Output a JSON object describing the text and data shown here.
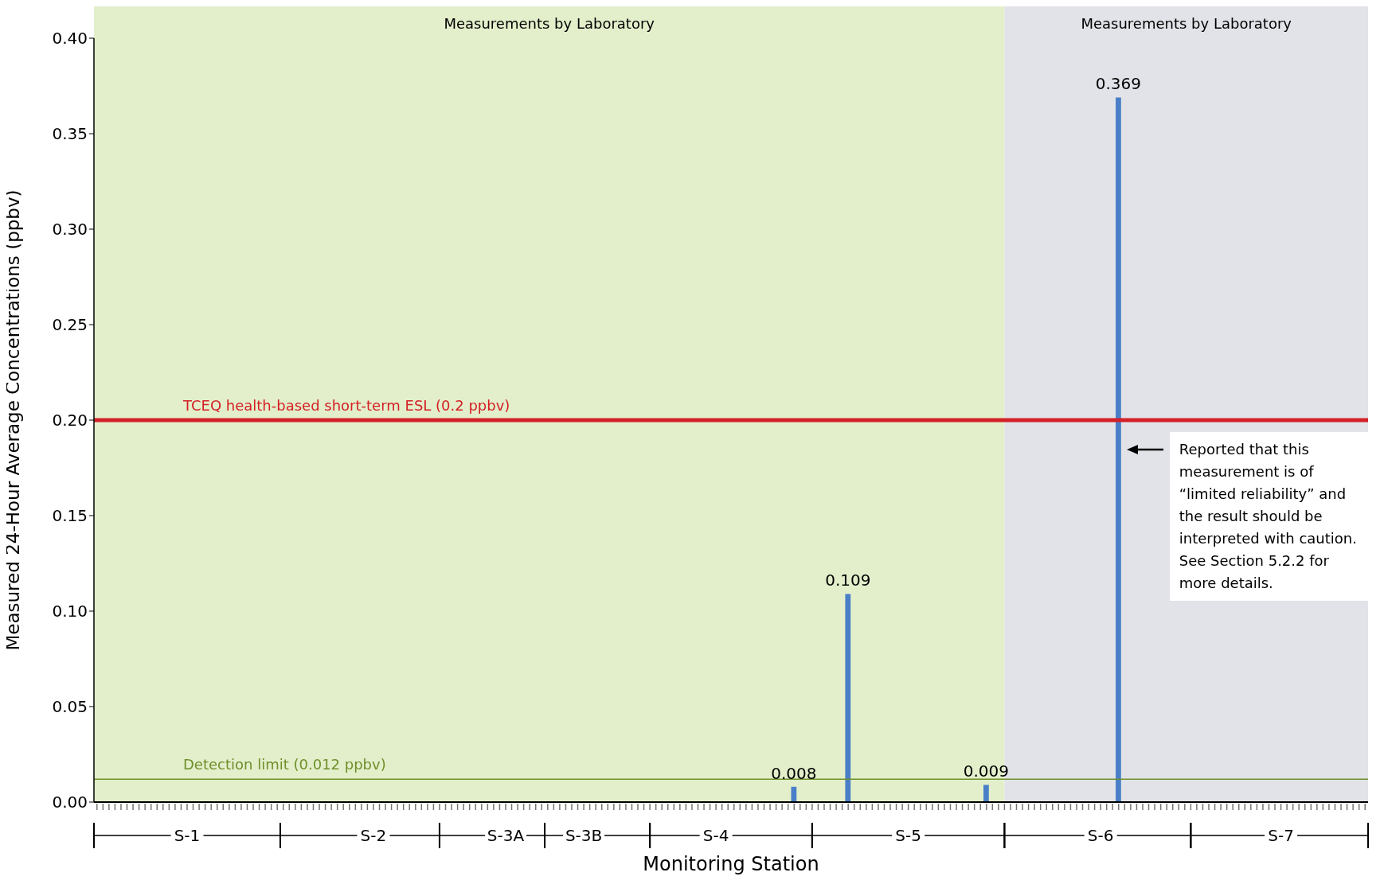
{
  "chart_data": {
    "type": "bar",
    "xlabel": "Monitoring Station",
    "ylabel": "Measured 24-Hour Average Concentrations (ppbv)",
    "categories": [
      null,
      null,
      null,
      null,
      null,
      null,
      null,
      null,
      null,
      null,
      null,
      null,
      null,
      null,
      null,
      "S-1",
      null,
      null,
      null,
      null,
      null,
      null,
      null,
      null,
      null,
      null,
      null,
      null,
      null,
      null,
      null,
      null,
      null,
      null,
      null,
      null,
      null,
      null,
      null,
      null,
      null,
      null,
      null,
      null,
      null,
      null,
      "S-2",
      null,
      null,
      null,
      null,
      null,
      null,
      null,
      null,
      null,
      null,
      null,
      null,
      null,
      null,
      null,
      null,
      null,
      null,
      null,
      null,
      null,
      "S-3A",
      null,
      null,
      null,
      null,
      null,
      null,
      null,
      null,
      null,
      null,
      null,
      null,
      "S-3B",
      null,
      null,
      null,
      null,
      null,
      null,
      null,
      null,
      null,
      null,
      null,
      null,
      null,
      null,
      null,
      null,
      null,
      null,
      null,
      null,
      null,
      "S-4",
      null,
      null,
      null,
      null,
      null,
      null,
      null,
      null,
      null,
      null,
      null,
      null,
      null,
      null,
      null,
      null,
      null,
      null,
      null,
      null,
      null,
      null,
      null,
      null,
      null,
      null,
      null,
      null,
      null,
      null,
      null,
      "S-5",
      null,
      null,
      null,
      null,
      null,
      null,
      null,
      null,
      null,
      null,
      null,
      null,
      null,
      null,
      null,
      null,
      null,
      null,
      null,
      null,
      null,
      null,
      null,
      null,
      null,
      null,
      null,
      null,
      null,
      null,
      null,
      "S-6",
      null,
      null,
      null,
      null,
      null,
      null,
      null,
      null,
      null,
      null,
      null,
      null,
      null,
      null,
      null,
      null,
      null,
      null,
      null,
      null,
      null,
      null,
      null,
      null,
      null,
      null,
      null,
      null,
      null,
      "S-7",
      null,
      null,
      null,
      null,
      null,
      null,
      null,
      null,
      null,
      null,
      null,
      null,
      null,
      null
    ],
    "values": [
      null,
      null,
      null,
      null,
      null,
      null,
      null,
      null,
      null,
      null,
      null,
      null,
      null,
      null,
      null,
      null,
      null,
      null,
      null,
      null,
      null,
      null,
      null,
      null,
      null,
      null,
      null,
      null,
      null,
      null,
      null,
      null,
      null,
      null,
      null,
      null,
      null,
      null,
      null,
      null,
      null,
      null,
      null,
      null,
      null,
      null,
      null,
      null,
      null,
      null,
      null,
      null,
      null,
      null,
      null,
      null,
      null,
      null,
      null,
      null,
      null,
      null,
      null,
      null,
      null,
      null,
      null,
      null,
      null,
      null,
      null,
      null,
      null,
      null,
      null,
      null,
      null,
      null,
      null,
      null,
      null,
      null,
      null,
      null,
      null,
      null,
      null,
      null,
      null,
      null,
      null,
      null,
      null,
      null,
      null,
      null,
      null,
      null,
      null,
      null,
      null,
      null,
      null,
      null,
      null,
      null,
      null,
      null,
      null,
      null,
      null,
      null,
      null,
      null,
      null,
      null,
      0.008,
      null,
      null,
      null,
      null,
      null,
      null,
      null,
      null,
      0.109,
      null,
      null,
      null,
      null,
      null,
      null,
      null,
      null,
      null,
      null,
      null,
      null,
      null,
      null,
      null,
      null,
      null,
      null,
      null,
      null,
      null,
      null,
      0.009,
      null,
      null,
      null,
      null,
      null,
      null,
      null,
      null,
      null,
      null,
      null,
      null,
      null,
      null,
      null,
      null,
      null,
      null,
      null,
      null,
      null,
      0.369,
      null,
      null,
      null,
      null,
      null,
      null,
      null,
      null,
      null,
      null,
      null,
      null,
      null,
      null,
      null,
      null,
      null,
      null,
      null,
      null,
      null,
      null,
      null,
      null,
      null,
      null,
      null,
      null,
      null,
      null,
      null,
      null,
      null,
      null,
      null,
      null,
      null,
      null,
      null,
      null,
      null
    ],
    "color": "#4a7fc8",
    "data_labels": true,
    "ylim": [
      0,
      0.4
    ],
    "yticks": [
      {
        "value": 0,
        "label": "0.00"
      },
      {
        "value": 0.05,
        "label": "0.05"
      },
      {
        "value": 0.1,
        "label": "0.10"
      },
      {
        "value": 0.15,
        "label": "0.15"
      },
      {
        "value": 0.2,
        "label": "0.20"
      },
      {
        "value": 0.25,
        "label": "0.25"
      },
      {
        "value": 0.3,
        "label": "0.30"
      },
      {
        "value": 0.35,
        "label": "0.35"
      },
      {
        "value": 0.4,
        "label": "0.40"
      }
    ],
    "ref_lines": [
      {
        "axis": "y",
        "value": 0.2,
        "label": "TCEQ health-based short-term ESL (0.2 ppbv)",
        "color": "#d42027"
      },
      {
        "axis": "y",
        "value": 0.012,
        "label": "Detection limit (0.012 ppbv)",
        "color": "#6f8f2a"
      }
    ],
    "annotations": [
      "Measurements by Laboratory",
      "Measurements by Laboratory",
      "Reported that this measurement is of “limited reliability” and the result should be interpreted with caution. See Section 5.2.2 for more details."
    ]
  }
}
